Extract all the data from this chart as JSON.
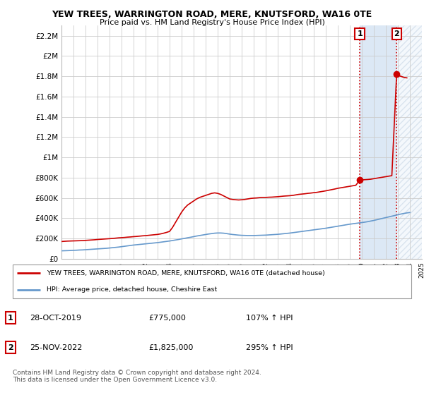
{
  "title": "YEW TREES, WARRINGTON ROAD, MERE, KNUTSFORD, WA16 0TE",
  "subtitle": "Price paid vs. HM Land Registry's House Price Index (HPI)",
  "legend_line1": "YEW TREES, WARRINGTON ROAD, MERE, KNUTSFORD, WA16 0TE (detached house)",
  "legend_line2": "HPI: Average price, detached house, Cheshire East",
  "footnote": "Contains HM Land Registry data © Crown copyright and database right 2024.\nThis data is licensed under the Open Government Licence v3.0.",
  "marker1_date": "28-OCT-2019",
  "marker1_price": "£775,000",
  "marker1_hpi": "107% ↑ HPI",
  "marker2_date": "25-NOV-2022",
  "marker2_price": "£1,825,000",
  "marker2_hpi": "295% ↑ HPI",
  "ylim": [
    0,
    2300000
  ],
  "yticks": [
    0,
    200000,
    400000,
    600000,
    800000,
    1000000,
    1200000,
    1400000,
    1600000,
    1800000,
    2000000,
    2200000
  ],
  "ytick_labels": [
    "£0",
    "£200K",
    "£400K",
    "£600K",
    "£800K",
    "£1M",
    "£1.2M",
    "£1.4M",
    "£1.6M",
    "£1.8M",
    "£2M",
    "£2.2M"
  ],
  "red_color": "#cc0000",
  "blue_color": "#6699cc",
  "marker1_x": 2019.83,
  "marker2_x": 2022.9,
  "marker1_y": 775000,
  "marker2_y": 1825000,
  "red_x": [
    1995.0,
    1995.25,
    1995.5,
    1995.75,
    1996.0,
    1996.25,
    1996.5,
    1996.75,
    1997.0,
    1997.25,
    1997.5,
    1997.75,
    1998.0,
    1998.25,
    1998.5,
    1998.75,
    1999.0,
    1999.25,
    1999.5,
    1999.75,
    2000.0,
    2000.25,
    2000.5,
    2000.75,
    2001.0,
    2001.25,
    2001.5,
    2001.75,
    2002.0,
    2002.25,
    2002.5,
    2002.75,
    2003.0,
    2003.25,
    2003.5,
    2003.75,
    2004.0,
    2004.25,
    2004.5,
    2004.75,
    2005.0,
    2005.25,
    2005.5,
    2005.75,
    2006.0,
    2006.25,
    2006.5,
    2006.75,
    2007.0,
    2007.25,
    2007.5,
    2007.75,
    2008.0,
    2008.25,
    2008.5,
    2008.75,
    2009.0,
    2009.25,
    2009.5,
    2009.75,
    2010.0,
    2010.25,
    2010.5,
    2010.75,
    2011.0,
    2011.25,
    2011.5,
    2011.75,
    2012.0,
    2012.25,
    2012.5,
    2012.75,
    2013.0,
    2013.25,
    2013.5,
    2013.75,
    2014.0,
    2014.25,
    2014.5,
    2014.75,
    2015.0,
    2015.25,
    2015.5,
    2015.75,
    2016.0,
    2016.25,
    2016.5,
    2016.75,
    2017.0,
    2017.25,
    2017.5,
    2017.75,
    2018.0,
    2018.25,
    2018.5,
    2018.75,
    2019.0,
    2019.25,
    2019.5,
    2019.83,
    2020.0,
    2020.25,
    2020.5,
    2020.75,
    2021.0,
    2021.25,
    2021.5,
    2021.75,
    2022.0,
    2022.25,
    2022.5,
    2022.9,
    2023.0,
    2023.25,
    2023.5,
    2023.75
  ],
  "red_y": [
    170000,
    172000,
    174000,
    175000,
    176000,
    177000,
    178000,
    179000,
    181000,
    183000,
    185000,
    187000,
    190000,
    192000,
    194000,
    196000,
    198000,
    200000,
    203000,
    206000,
    208000,
    210000,
    213000,
    215000,
    218000,
    220000,
    223000,
    226000,
    228000,
    231000,
    234000,
    237000,
    240000,
    245000,
    252000,
    260000,
    270000,
    310000,
    360000,
    410000,
    460000,
    500000,
    530000,
    550000,
    570000,
    590000,
    605000,
    615000,
    625000,
    635000,
    645000,
    650000,
    645000,
    635000,
    620000,
    605000,
    590000,
    585000,
    582000,
    580000,
    582000,
    585000,
    590000,
    595000,
    598000,
    600000,
    603000,
    605000,
    605000,
    607000,
    608000,
    610000,
    612000,
    615000,
    618000,
    620000,
    622000,
    625000,
    630000,
    635000,
    638000,
    641000,
    645000,
    648000,
    652000,
    655000,
    660000,
    665000,
    670000,
    676000,
    682000,
    688000,
    695000,
    700000,
    705000,
    710000,
    715000,
    720000,
    725000,
    775000,
    778000,
    780000,
    782000,
    785000,
    790000,
    795000,
    800000,
    805000,
    810000,
    815000,
    820000,
    1825000,
    1810000,
    1800000,
    1790000,
    1785000
  ],
  "blue_x": [
    1995.0,
    1995.25,
    1995.5,
    1995.75,
    1996.0,
    1996.25,
    1996.5,
    1996.75,
    1997.0,
    1997.25,
    1997.5,
    1997.75,
    1998.0,
    1998.25,
    1998.5,
    1998.75,
    1999.0,
    1999.25,
    1999.5,
    1999.75,
    2000.0,
    2000.25,
    2000.5,
    2000.75,
    2001.0,
    2001.25,
    2001.5,
    2001.75,
    2002.0,
    2002.25,
    2002.5,
    2002.75,
    2003.0,
    2003.25,
    2003.5,
    2003.75,
    2004.0,
    2004.25,
    2004.5,
    2004.75,
    2005.0,
    2005.25,
    2005.5,
    2005.75,
    2006.0,
    2006.25,
    2006.5,
    2006.75,
    2007.0,
    2007.25,
    2007.5,
    2007.75,
    2008.0,
    2008.25,
    2008.5,
    2008.75,
    2009.0,
    2009.25,
    2009.5,
    2009.75,
    2010.0,
    2010.25,
    2010.5,
    2010.75,
    2011.0,
    2011.25,
    2011.5,
    2011.75,
    2012.0,
    2012.25,
    2012.5,
    2012.75,
    2013.0,
    2013.25,
    2013.5,
    2013.75,
    2014.0,
    2014.25,
    2014.5,
    2014.75,
    2015.0,
    2015.25,
    2015.5,
    2015.75,
    2016.0,
    2016.25,
    2016.5,
    2016.75,
    2017.0,
    2017.25,
    2017.5,
    2017.75,
    2018.0,
    2018.25,
    2018.5,
    2018.75,
    2019.0,
    2019.25,
    2019.5,
    2019.75,
    2020.0,
    2020.25,
    2020.5,
    2020.75,
    2021.0,
    2021.25,
    2021.5,
    2021.75,
    2022.0,
    2022.25,
    2022.5,
    2022.75,
    2023.0,
    2023.25,
    2023.5,
    2023.75,
    2024.0
  ],
  "blue_y": [
    78000,
    79000,
    80000,
    81000,
    83000,
    84000,
    86000,
    87000,
    89000,
    91000,
    93000,
    95000,
    97000,
    99000,
    101000,
    103000,
    106000,
    109000,
    112000,
    115000,
    119000,
    123000,
    127000,
    131000,
    135000,
    138000,
    141000,
    144000,
    147000,
    150000,
    153000,
    156000,
    159000,
    163000,
    167000,
    171000,
    175000,
    180000,
    185000,
    190000,
    196000,
    201000,
    207000,
    212000,
    218000,
    224000,
    229000,
    234000,
    239000,
    244000,
    248000,
    252000,
    254000,
    254000,
    252000,
    248000,
    243000,
    239000,
    236000,
    233000,
    231000,
    230000,
    229000,
    229000,
    229000,
    230000,
    231000,
    232000,
    233000,
    235000,
    237000,
    239000,
    241000,
    244000,
    247000,
    250000,
    253000,
    257000,
    261000,
    265000,
    269000,
    273000,
    277000,
    281000,
    285000,
    289000,
    293000,
    297000,
    301000,
    306000,
    311000,
    316000,
    321000,
    326000,
    331000,
    336000,
    341000,
    345000,
    349000,
    353000,
    357000,
    361000,
    366000,
    372000,
    378000,
    385000,
    392000,
    399000,
    406000,
    413000,
    420000,
    427000,
    434000,
    441000,
    447000,
    452000,
    456000
  ],
  "xmin": 1995,
  "xmax": 2025
}
